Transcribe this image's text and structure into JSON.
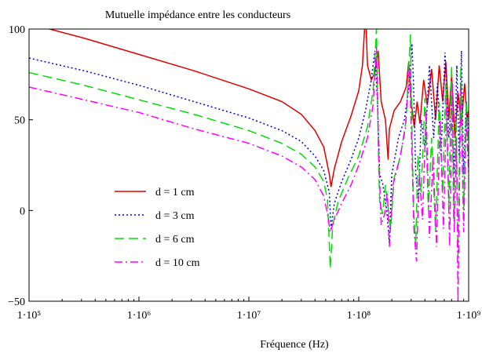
{
  "chart_data": {
    "type": "line",
    "title": "Mutuelle impédance entre les conducteurs",
    "xlabel": "Fréquence (Hz)",
    "ylabel": "",
    "x_scale": "log",
    "xlim": [
      100000,
      1000000000
    ],
    "ylim": [
      -50,
      100
    ],
    "x_ticks": [
      {
        "value": 100000,
        "label": "1·10⁵"
      },
      {
        "value": 1000000,
        "label": "1·10⁶"
      },
      {
        "value": 10000000,
        "label": "1·10⁷"
      },
      {
        "value": 100000000,
        "label": "1·10⁸"
      },
      {
        "value": 1000000000,
        "label": "1·10⁹"
      }
    ],
    "y_ticks": [
      {
        "value": 100,
        "label": "100"
      },
      {
        "value": 50,
        "label": "50"
      },
      {
        "value": 0,
        "label": "0"
      },
      {
        "value": -50,
        "label": "−50"
      }
    ],
    "grid": false,
    "legend_position": "lower-left",
    "series": [
      {
        "name": "d = 1 cm",
        "color": "#e00000",
        "dash": "solid",
        "points": [
          [
            100000,
            103
          ],
          [
            316000,
            95
          ],
          [
            1000000,
            86
          ],
          [
            3160000,
            77
          ],
          [
            10000000,
            67
          ],
          [
            20000000,
            60
          ],
          [
            30000000,
            53
          ],
          [
            40000000,
            44
          ],
          [
            48000000,
            35
          ],
          [
            54000000,
            20
          ],
          [
            56000000,
            13
          ],
          [
            60000000,
            23
          ],
          [
            70000000,
            38
          ],
          [
            85000000,
            52
          ],
          [
            100000000,
            66
          ],
          [
            108000000,
            80
          ],
          [
            113000000,
            100
          ],
          [
            116000000,
            106
          ],
          [
            118000000,
            92
          ],
          [
            120000000,
            80
          ],
          [
            130000000,
            72
          ],
          [
            140000000,
            76
          ],
          [
            150000000,
            88
          ],
          [
            160000000,
            60
          ],
          [
            175000000,
            50
          ],
          [
            185000000,
            28
          ],
          [
            190000000,
            45
          ],
          [
            210000000,
            55
          ],
          [
            240000000,
            60
          ],
          [
            270000000,
            68
          ],
          [
            285000000,
            82
          ],
          [
            300000000,
            60
          ],
          [
            320000000,
            46
          ],
          [
            340000000,
            60
          ],
          [
            360000000,
            48
          ],
          [
            390000000,
            72
          ],
          [
            420000000,
            58
          ],
          [
            460000000,
            78
          ],
          [
            500000000,
            50
          ],
          [
            540000000,
            80
          ],
          [
            580000000,
            60
          ],
          [
            620000000,
            82
          ],
          [
            660000000,
            50
          ],
          [
            700000000,
            75
          ],
          [
            750000000,
            40
          ],
          [
            800000000,
            65
          ],
          [
            860000000,
            48
          ],
          [
            920000000,
            70
          ],
          [
            970000000,
            50
          ],
          [
            1000000000,
            55
          ]
        ]
      },
      {
        "name": "d = 3 cm",
        "color": "#0000dd",
        "dash": "dot",
        "points": [
          [
            100000,
            84
          ],
          [
            316000,
            77
          ],
          [
            1000000,
            69
          ],
          [
            3160000,
            60
          ],
          [
            10000000,
            51
          ],
          [
            20000000,
            44
          ],
          [
            30000000,
            38
          ],
          [
            40000000,
            30
          ],
          [
            48000000,
            22
          ],
          [
            54000000,
            10
          ],
          [
            56000000,
            -10
          ],
          [
            60000000,
            4
          ],
          [
            70000000,
            16
          ],
          [
            85000000,
            28
          ],
          [
            100000000,
            40
          ],
          [
            115000000,
            55
          ],
          [
            130000000,
            72
          ],
          [
            140000000,
            88
          ],
          [
            148000000,
            60
          ],
          [
            155000000,
            20
          ],
          [
            165000000,
            15
          ],
          [
            180000000,
            0
          ],
          [
            190000000,
            -18
          ],
          [
            200000000,
            20
          ],
          [
            230000000,
            40
          ],
          [
            260000000,
            50
          ],
          [
            290000000,
            70
          ],
          [
            305000000,
            92
          ],
          [
            315000000,
            70
          ],
          [
            330000000,
            20
          ],
          [
            350000000,
            5
          ],
          [
            370000000,
            50
          ],
          [
            400000000,
            35
          ],
          [
            440000000,
            80
          ],
          [
            480000000,
            40
          ],
          [
            520000000,
            70
          ],
          [
            560000000,
            30
          ],
          [
            610000000,
            87
          ],
          [
            660000000,
            40
          ],
          [
            700000000,
            60
          ],
          [
            740000000,
            20
          ],
          [
            780000000,
            80
          ],
          [
            820000000,
            30
          ],
          [
            860000000,
            88
          ],
          [
            900000000,
            20
          ],
          [
            950000000,
            60
          ],
          [
            1000000000,
            40
          ]
        ]
      },
      {
        "name": "d = 6 cm",
        "color": "#00dd00",
        "dash": "longdash",
        "points": [
          [
            100000,
            76
          ],
          [
            316000,
            69
          ],
          [
            1000000,
            61
          ],
          [
            3160000,
            53
          ],
          [
            10000000,
            44
          ],
          [
            20000000,
            37
          ],
          [
            30000000,
            31
          ],
          [
            40000000,
            24
          ],
          [
            48000000,
            16
          ],
          [
            52000000,
            6
          ],
          [
            55000000,
            -32
          ],
          [
            58000000,
            -8
          ],
          [
            65000000,
            5
          ],
          [
            80000000,
            18
          ],
          [
            100000000,
            30
          ],
          [
            120000000,
            46
          ],
          [
            135000000,
            66
          ],
          [
            145000000,
            100
          ],
          [
            150000000,
            40
          ],
          [
            155000000,
            5
          ],
          [
            165000000,
            -2
          ],
          [
            175000000,
            14
          ],
          [
            185000000,
            2
          ],
          [
            195000000,
            -10
          ],
          [
            210000000,
            18
          ],
          [
            240000000,
            30
          ],
          [
            270000000,
            50
          ],
          [
            295000000,
            97
          ],
          [
            305000000,
            45
          ],
          [
            315000000,
            0
          ],
          [
            330000000,
            -20
          ],
          [
            345000000,
            30
          ],
          [
            370000000,
            10
          ],
          [
            400000000,
            62
          ],
          [
            430000000,
            0
          ],
          [
            460000000,
            40
          ],
          [
            500000000,
            -12
          ],
          [
            540000000,
            60
          ],
          [
            580000000,
            10
          ],
          [
            620000000,
            70
          ],
          [
            660000000,
            0
          ],
          [
            700000000,
            80
          ],
          [
            730000000,
            -5
          ],
          [
            770000000,
            50
          ],
          [
            800000000,
            -25
          ],
          [
            850000000,
            80
          ],
          [
            900000000,
            0
          ],
          [
            950000000,
            60
          ],
          [
            1000000000,
            30
          ]
        ]
      },
      {
        "name": "d = 10 cm",
        "color": "#ff00ff",
        "dash": "dashdot",
        "points": [
          [
            100000,
            68
          ],
          [
            316000,
            61
          ],
          [
            1000000,
            54
          ],
          [
            3160000,
            45
          ],
          [
            10000000,
            37
          ],
          [
            20000000,
            30
          ],
          [
            30000000,
            24
          ],
          [
            40000000,
            17
          ],
          [
            48000000,
            8
          ],
          [
            52000000,
            -2
          ],
          [
            55000000,
            -12
          ],
          [
            60000000,
            -5
          ],
          [
            70000000,
            4
          ],
          [
            85000000,
            14
          ],
          [
            100000000,
            25
          ],
          [
            120000000,
            40
          ],
          [
            135000000,
            58
          ],
          [
            145000000,
            90
          ],
          [
            152000000,
            30
          ],
          [
            160000000,
            -8
          ],
          [
            172000000,
            -2
          ],
          [
            182000000,
            10
          ],
          [
            190000000,
            -20
          ],
          [
            205000000,
            14
          ],
          [
            235000000,
            28
          ],
          [
            265000000,
            45
          ],
          [
            290000000,
            80
          ],
          [
            305000000,
            30
          ],
          [
            318000000,
            -10
          ],
          [
            335000000,
            -28
          ],
          [
            355000000,
            20
          ],
          [
            380000000,
            -5
          ],
          [
            410000000,
            55
          ],
          [
            440000000,
            -15
          ],
          [
            475000000,
            30
          ],
          [
            510000000,
            -20
          ],
          [
            550000000,
            50
          ],
          [
            590000000,
            -10
          ],
          [
            630000000,
            62
          ],
          [
            670000000,
            -20
          ],
          [
            710000000,
            70
          ],
          [
            740000000,
            -12
          ],
          [
            775000000,
            40
          ],
          [
            800000000,
            -50
          ],
          [
            850000000,
            70
          ],
          [
            900000000,
            -12
          ],
          [
            950000000,
            50
          ],
          [
            1000000000,
            20
          ]
        ]
      }
    ]
  }
}
